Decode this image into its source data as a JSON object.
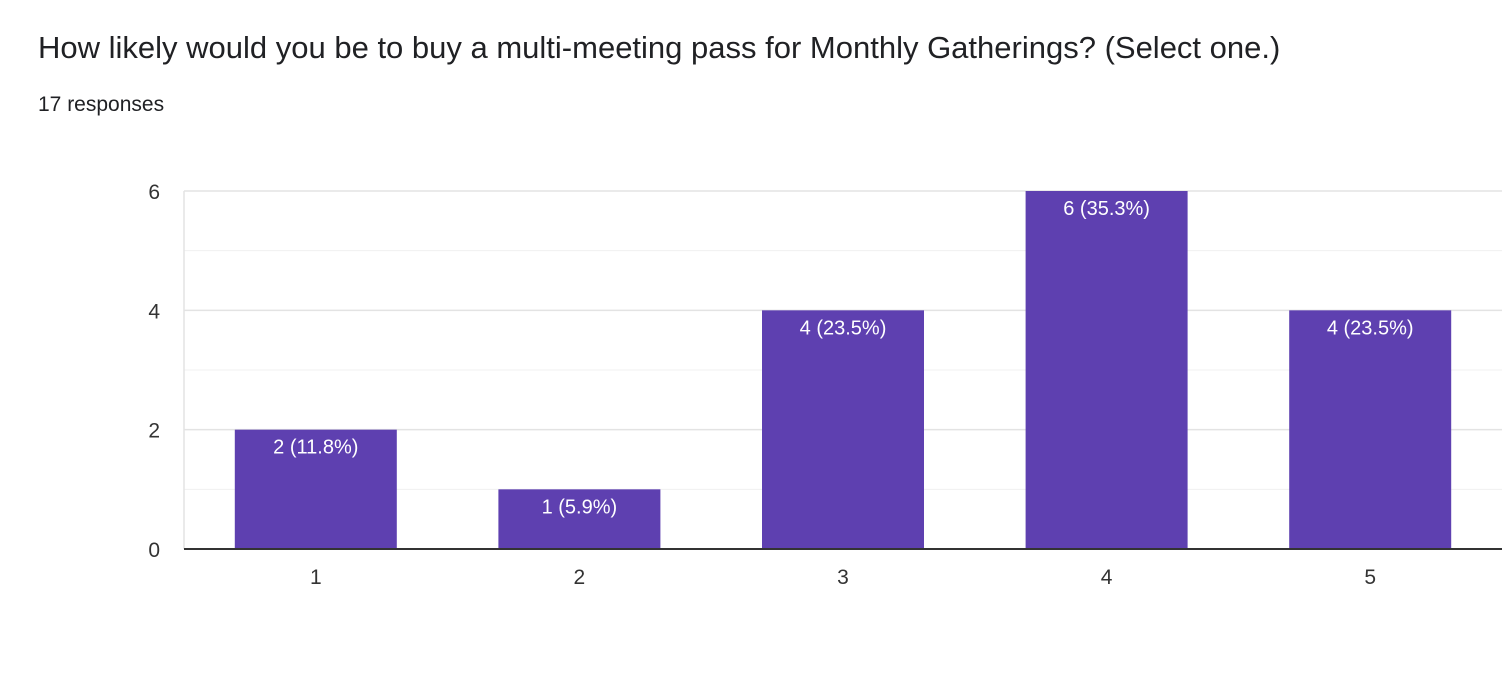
{
  "question": {
    "title": "How likely would you be to buy a multi-meeting pass for Monthly Gatherings? (Select one.)",
    "responses": "17 responses"
  },
  "colors": {
    "bar": "#5e40b0",
    "grid": "#e6e6e6",
    "axis": "#333333",
    "bar_label": "#ffffff"
  },
  "chart_data": {
    "type": "bar",
    "categories": [
      "1",
      "2",
      "3",
      "4",
      "5"
    ],
    "values": [
      2,
      1,
      4,
      6,
      4
    ],
    "data_labels": [
      "2 (11.8%)",
      "1 (5.9%)",
      "4 (23.5%)",
      "6 (35.3%)",
      "4 (23.5%)"
    ],
    "y_ticks": [
      0,
      2,
      4,
      6
    ],
    "ylim": [
      0,
      6
    ],
    "grid": true,
    "legend": "none"
  }
}
